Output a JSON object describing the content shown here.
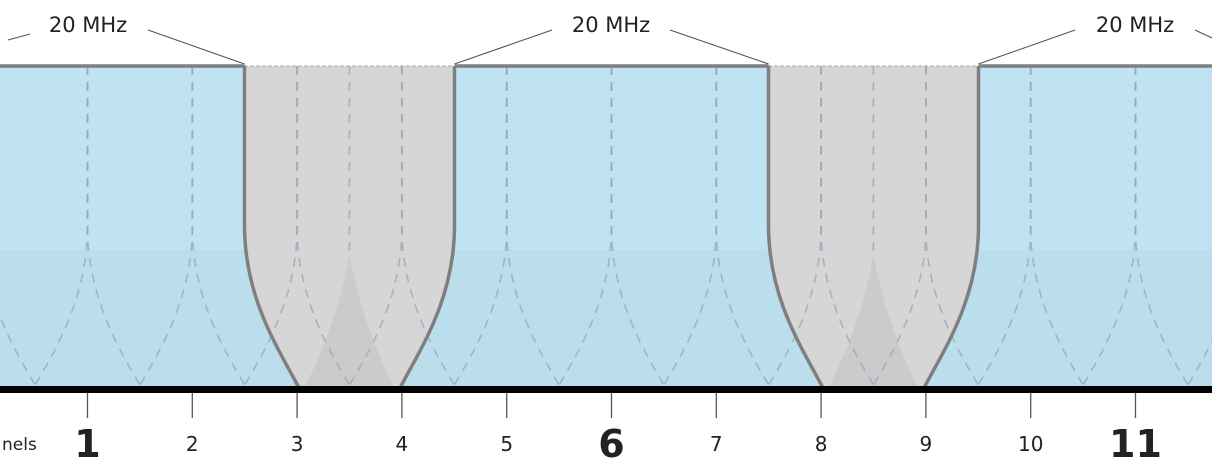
{
  "width_labels": [
    "20 MHz",
    "20 MHz",
    "20 MHz"
  ],
  "axis_title_fragment": "nels",
  "channels": [
    {
      "number": "1",
      "primary": true
    },
    {
      "number": "2",
      "primary": false
    },
    {
      "number": "3",
      "primary": false
    },
    {
      "number": "4",
      "primary": false
    },
    {
      "number": "5",
      "primary": false
    },
    {
      "number": "6",
      "primary": true
    },
    {
      "number": "7",
      "primary": false
    },
    {
      "number": "8",
      "primary": false
    },
    {
      "number": "9",
      "primary": false
    },
    {
      "number": "10",
      "primary": false
    },
    {
      "number": "11",
      "primary": true
    }
  ],
  "colors": {
    "channel_fill": "#bfe3f2",
    "channel_overlap": "#b5d7e6",
    "guard_fill": "#d6d6d8",
    "guard_overlap": "#cbcbcd",
    "outline": "#7f7f7f",
    "dashed": "#9aa5ab",
    "baseline": "#000000",
    "text": "#222222"
  }
}
